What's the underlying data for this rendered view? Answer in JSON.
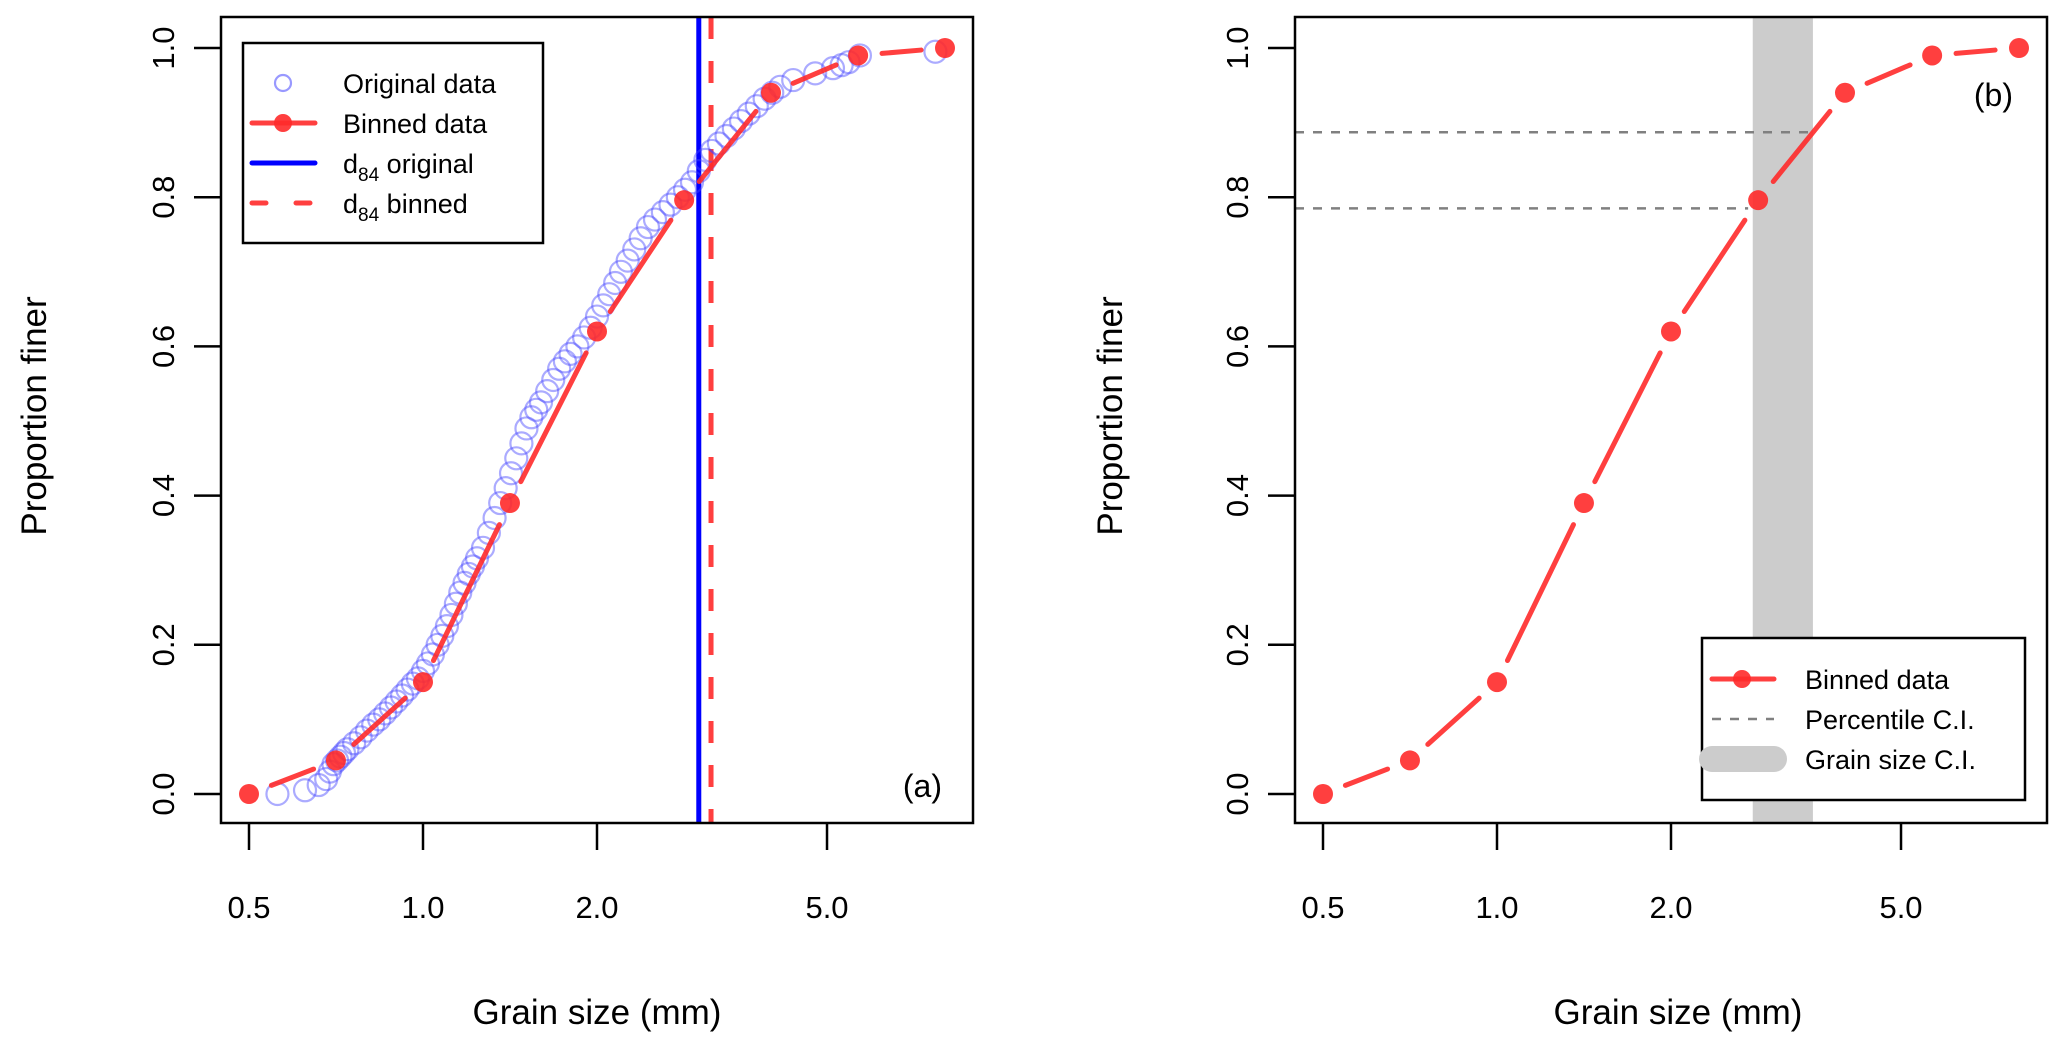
{
  "chart_data": [
    {
      "type": "scatter",
      "panel_label": "(a)",
      "xlabel": "Grain size (mm)",
      "ylabel": "Proportion finer",
      "xscale": "log",
      "xlim": [
        0.47,
        9.2
      ],
      "ylim": [
        -0.04,
        1.04
      ],
      "xticks": [
        0.5,
        1.0,
        2.0,
        5.0
      ],
      "xtick_labels": [
        "0.5",
        "1.0",
        "2.0",
        "5.0"
      ],
      "yticks": [
        0.0,
        0.2,
        0.4,
        0.6,
        0.8,
        1.0
      ],
      "ytick_labels": [
        "0.0",
        "0.2",
        "0.4",
        "0.6",
        "0.8",
        "1.0"
      ],
      "grid": false,
      "legend_position": "top-left",
      "legend": [
        {
          "label": "Original data",
          "sub": "",
          "suffix": "",
          "style": "open-circle",
          "color": "#8080ff"
        },
        {
          "label": "Binned data",
          "sub": "",
          "suffix": "",
          "style": "line-dot",
          "color": "#ff2a2a"
        },
        {
          "label": "d",
          "sub": "84",
          "suffix": " original",
          "style": "solid-line",
          "color": "#0000ff"
        },
        {
          "label": "d",
          "sub": "84",
          "suffix": " binned",
          "style": "dashed-line",
          "color": "#ff2a2a"
        }
      ],
      "series": [
        {
          "name": "Original data",
          "style": "open-circle",
          "color": "#8080ff",
          "x": [
            0.56,
            0.625,
            0.66,
            0.68,
            0.69,
            0.7,
            0.71,
            0.72,
            0.73,
            0.74,
            0.76,
            0.78,
            0.8,
            0.82,
            0.84,
            0.86,
            0.88,
            0.9,
            0.92,
            0.94,
            0.96,
            0.98,
            1.0,
            1.02,
            1.04,
            1.06,
            1.08,
            1.1,
            1.12,
            1.14,
            1.16,
            1.18,
            1.2,
            1.22,
            1.24,
            1.27,
            1.3,
            1.33,
            1.36,
            1.39,
            1.42,
            1.45,
            1.48,
            1.51,
            1.54,
            1.57,
            1.6,
            1.64,
            1.68,
            1.72,
            1.76,
            1.8,
            1.85,
            1.9,
            1.95,
            2.0,
            2.05,
            2.1,
            2.15,
            2.2,
            2.26,
            2.32,
            2.38,
            2.45,
            2.52,
            2.6,
            2.68,
            2.76,
            2.84,
            2.92,
            3.0,
            3.08,
            3.16,
            3.25,
            3.35,
            3.45,
            3.55,
            3.66,
            3.78,
            3.9,
            4.02,
            4.15,
            4.37,
            4.77,
            5.12,
            5.3,
            5.45,
            5.7,
            7.7
          ],
          "y": [
            0.0,
            0.005,
            0.012,
            0.02,
            0.03,
            0.04,
            0.045,
            0.05,
            0.055,
            0.06,
            0.068,
            0.076,
            0.085,
            0.093,
            0.1,
            0.108,
            0.116,
            0.124,
            0.132,
            0.14,
            0.148,
            0.155,
            0.165,
            0.175,
            0.187,
            0.2,
            0.212,
            0.225,
            0.24,
            0.255,
            0.27,
            0.283,
            0.295,
            0.305,
            0.316,
            0.33,
            0.35,
            0.37,
            0.39,
            0.41,
            0.43,
            0.45,
            0.47,
            0.49,
            0.505,
            0.515,
            0.525,
            0.54,
            0.555,
            0.57,
            0.58,
            0.59,
            0.6,
            0.612,
            0.625,
            0.64,
            0.655,
            0.67,
            0.685,
            0.7,
            0.715,
            0.73,
            0.745,
            0.76,
            0.77,
            0.78,
            0.79,
            0.8,
            0.81,
            0.82,
            0.835,
            0.85,
            0.862,
            0.872,
            0.882,
            0.892,
            0.902,
            0.912,
            0.922,
            0.932,
            0.94,
            0.948,
            0.957,
            0.966,
            0.973,
            0.977,
            0.981,
            0.99,
            0.995
          ]
        },
        {
          "name": "Binned data",
          "style": "line-dot",
          "color": "#ff2a2a",
          "x": [
            0.5,
            0.707,
            1.0,
            1.414,
            2.0,
            2.83,
            4.0,
            5.66,
            8.0
          ],
          "y": [
            0.0,
            0.045,
            0.15,
            0.39,
            0.62,
            0.796,
            0.94,
            0.99,
            1.0
          ]
        }
      ],
      "vlines": [
        {
          "name": "d84 original",
          "x": 3.0,
          "color": "#0000ff",
          "style": "solid"
        },
        {
          "name": "d84 binned",
          "x": 3.15,
          "color": "#ff2a2a",
          "style": "dashed"
        }
      ]
    },
    {
      "type": "line",
      "panel_label": "(b)",
      "xlabel": "Grain size (mm)",
      "ylabel": "Proportion finer",
      "xscale": "log",
      "xlim": [
        0.47,
        9.2
      ],
      "ylim": [
        -0.04,
        1.04
      ],
      "xticks": [
        0.5,
        1.0,
        2.0,
        5.0
      ],
      "xtick_labels": [
        "0.5",
        "1.0",
        "2.0",
        "5.0"
      ],
      "yticks": [
        0.0,
        0.2,
        0.4,
        0.6,
        0.8,
        1.0
      ],
      "ytick_labels": [
        "0.0",
        "0.2",
        "0.4",
        "0.6",
        "0.8",
        "1.0"
      ],
      "grid": false,
      "legend_position": "bottom-right",
      "legend": [
        {
          "label": "Binned data",
          "style": "line-dot",
          "color": "#ff2a2a"
        },
        {
          "label": "Percentile C.I.",
          "style": "dashed-gray",
          "color": "#808080"
        },
        {
          "label": "Grain size C.I.",
          "style": "gray-band",
          "color": "#cccccc"
        }
      ],
      "series": [
        {
          "name": "Binned data",
          "style": "line-dot",
          "color": "#ff2a2a",
          "x": [
            0.5,
            0.707,
            1.0,
            1.414,
            2.0,
            2.83,
            4.0,
            5.66,
            8.0
          ],
          "y": [
            0.0,
            0.045,
            0.15,
            0.39,
            0.62,
            0.796,
            0.94,
            0.99,
            1.0
          ]
        }
      ],
      "percentile_ci": {
        "lower": 0.785,
        "upper": 0.887,
        "x_end": 3.52,
        "color": "#808080"
      },
      "grain_size_ci": {
        "lower": 2.77,
        "upper": 3.52,
        "color": "#cccccc"
      }
    }
  ]
}
